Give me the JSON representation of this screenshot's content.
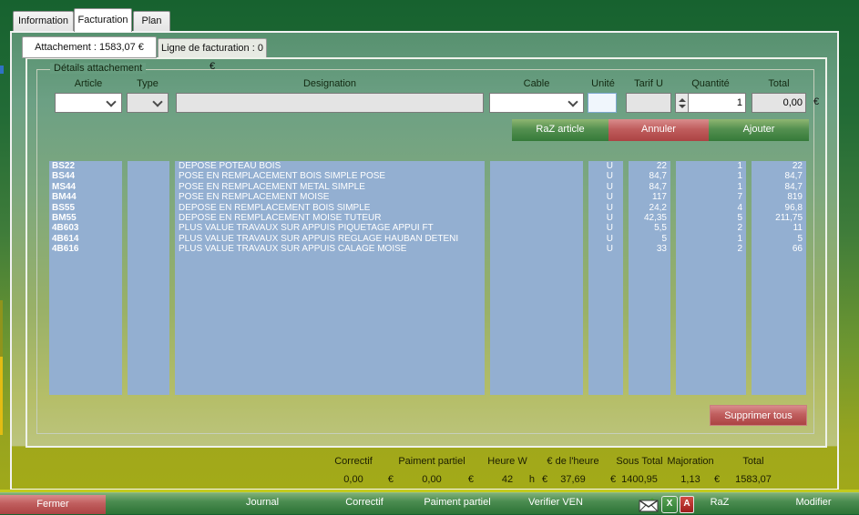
{
  "tabs": {
    "items": [
      {
        "label": "Information"
      },
      {
        "label": "Facturation"
      },
      {
        "label": "Plan"
      }
    ],
    "active": "Facturation"
  },
  "subtabs": {
    "items": [
      {
        "label": "Attachement : 1583,07 €"
      },
      {
        "label": "Ligne de facturation : 0 €"
      }
    ],
    "active": "Attachement : 1583,07 €"
  },
  "details": {
    "group_title": "Détails attachement",
    "headers": {
      "article": "Article",
      "type": "Type",
      "designation": "Designation",
      "cable": "Cable",
      "unite": "Unité",
      "tarif": "Tarif U",
      "quantite": "Quantité",
      "total": "Total"
    },
    "inputs": {
      "quantite_value": "1",
      "total_value": "0,00",
      "currency": "€"
    },
    "buttons": {
      "raz_article": "RaZ article",
      "annuler": "Annuler",
      "ajouter": "Ajouter",
      "supprimer_tous": "Supprimer tous"
    }
  },
  "table": {
    "rows": [
      {
        "article": "BS22",
        "type": "",
        "designation": "DEPOSE POTEAU BOIS",
        "cable": "",
        "unite": "U",
        "tarif": "22",
        "quantite": "1",
        "total": "22"
      },
      {
        "article": "BS44",
        "type": "",
        "designation": "POSE EN REMPLACEMENT BOIS SIMPLE POSE",
        "cable": "",
        "unite": "U",
        "tarif": "84,7",
        "quantite": "1",
        "total": "84,7"
      },
      {
        "article": "MS44",
        "type": "",
        "designation": "POSE EN REMPLACEMENT METAL SIMPLE",
        "cable": "",
        "unite": "U",
        "tarif": "84,7",
        "quantite": "1",
        "total": "84,7"
      },
      {
        "article": "BM44",
        "type": "",
        "designation": "POSE EN REMPLACEMENT MOISE",
        "cable": "",
        "unite": "U",
        "tarif": "117",
        "quantite": "7",
        "total": "819"
      },
      {
        "article": "BS55",
        "type": "",
        "designation": "DEPOSE EN REMPLACEMENT BOIS SIMPLE",
        "cable": "",
        "unite": "U",
        "tarif": "24,2",
        "quantite": "4",
        "total": "96,8"
      },
      {
        "article": "BM55",
        "type": "",
        "designation": "DEPOSE EN REMPLACEMENT MOISE TUTEUR",
        "cable": "",
        "unite": "U",
        "tarif": "42,35",
        "quantite": "5",
        "total": "211,75"
      },
      {
        "article": "4B603",
        "type": "",
        "designation": "PLUS VALUE TRAVAUX SUR APPUIS PIQUETAGE APPUI FT",
        "cable": "",
        "unite": "U",
        "tarif": "5,5",
        "quantite": "2",
        "total": "11"
      },
      {
        "article": "4B614",
        "type": "",
        "designation": "PLUS VALUE TRAVAUX SUR APPUIS REGLAGE HAUBAN DETENI",
        "cable": "",
        "unite": "U",
        "tarif": "5",
        "quantite": "1",
        "total": "5"
      },
      {
        "article": "4B616",
        "type": "",
        "designation": "PLUS VALUE TRAVAUX SUR APPUIS CALAGE MOISE",
        "cable": "",
        "unite": "U",
        "tarif": "33",
        "quantite": "2",
        "total": "66"
      }
    ]
  },
  "summary": {
    "items": [
      {
        "label": "Correctif",
        "value": "0,00",
        "suffix": "€"
      },
      {
        "label": "Paiment partiel",
        "value": "0,00",
        "suffix": "€"
      },
      {
        "label": "Heure W",
        "value": "42",
        "suffix": "h"
      },
      {
        "label": "€ de l'heure",
        "prefix": "€",
        "value": "37,69"
      },
      {
        "label": "Sous Total",
        "prefix": "€",
        "value": "1400,95"
      },
      {
        "label": "Majoration",
        "value": "1,13"
      },
      {
        "label": "Total",
        "prefix": "€",
        "value": "1583,07"
      }
    ]
  },
  "bottombar": {
    "fermer": "Fermer",
    "journal": "Journal",
    "correctif": "Correctif",
    "paiment_partiel": "Paiment partiel",
    "verifier_ven": "Verifier VEN",
    "raz": "RaZ",
    "modifier": "Modifier",
    "icons": [
      "email-icon",
      "excel-icon",
      "pdf-icon"
    ]
  },
  "colors": {
    "accent_green": "#2f7a3a",
    "accent_red": "#bb4f4f",
    "table_blue": "#93afd1",
    "band_olive": "#a3aa18",
    "dark_green": "#17622f"
  }
}
